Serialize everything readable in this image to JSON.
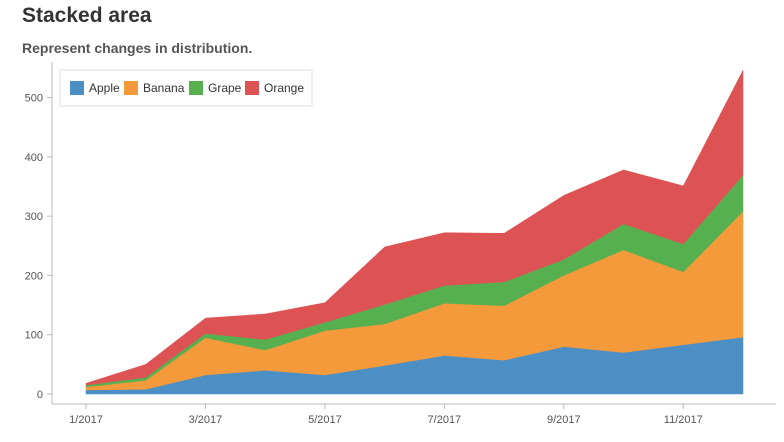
{
  "header": {
    "title": "Stacked area",
    "subtitle": "Represent changes in distribution."
  },
  "chart_data": {
    "type": "area",
    "stacked": true,
    "x": [
      "1/2017",
      "2/2017",
      "3/2017",
      "4/2017",
      "5/2017",
      "6/2017",
      "7/2017",
      "8/2017",
      "9/2017",
      "10/2017",
      "11/2017",
      "12/2017"
    ],
    "x_tick_labels": [
      "1/2017",
      "3/2017",
      "5/2017",
      "7/2017",
      "9/2017",
      "11/2017"
    ],
    "ylim": [
      0,
      560
    ],
    "y_ticks": [
      0,
      100,
      200,
      300,
      400,
      500
    ],
    "legend_position": "top-left",
    "grid": false,
    "series": [
      {
        "name": "Apple",
        "color": "#4c8fc4",
        "values": [
          7,
          8,
          32,
          40,
          32,
          48,
          65,
          57,
          80,
          70,
          83,
          96
        ]
      },
      {
        "name": "Banana",
        "color": "#f59a3b",
        "values": [
          5,
          15,
          63,
          34,
          75,
          70,
          88,
          92,
          120,
          173,
          123,
          212
        ]
      },
      {
        "name": "Grape",
        "color": "#57b050",
        "values": [
          3,
          5,
          7,
          18,
          14,
          33,
          30,
          40,
          27,
          44,
          47,
          61
        ]
      },
      {
        "name": "Orange",
        "color": "#dd5354",
        "values": [
          3,
          22,
          26,
          43,
          33,
          97,
          89,
          82,
          108,
          91,
          98,
          177
        ]
      }
    ]
  }
}
